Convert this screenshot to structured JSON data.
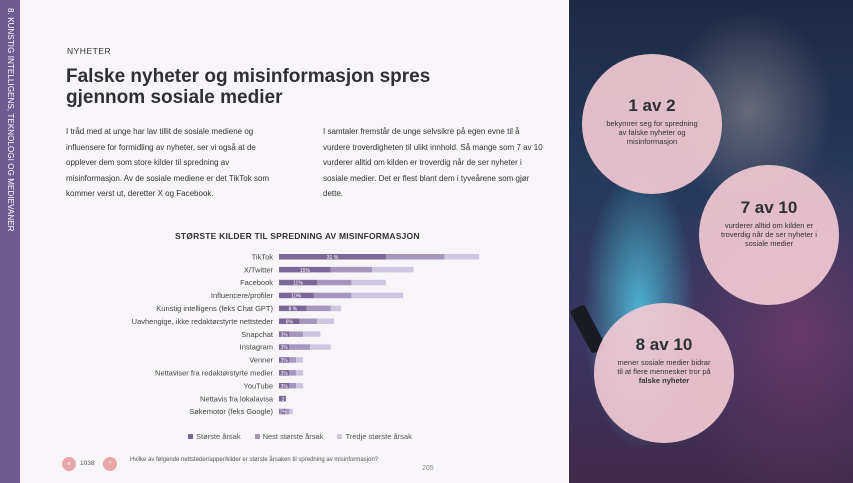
{
  "sidebar": {
    "text": "8. KUNSTIG INTELLIGENS, TEKNOLOGI OG MEDIEVANER"
  },
  "header": {
    "kicker": "NYHETER",
    "title": "Falske nyheter og misinformasjon spres gjennom sosiale medier"
  },
  "body": {
    "col1": "I tråd med at unge har lav tillit de sosiale mediene og influensere for formidling av nyheter, ser vi også at de opplever dem som store kilder til spredning av misinformasjon. Av de sosiale mediene er det TikTok som kommer verst ut, deretter X og Facebook.",
    "col2": "I samtaler fremstår de unge selvsikre på egen evne til å vurdere troverdigheten til ulikt innhold. Så mange som 7 av 10 vurderer alltid om kilden er troverdig når de ser nyheter i sosiale medier. Det er flest blant dem i tyveårene som gjør dette."
  },
  "chart_data": {
    "type": "bar",
    "stacked": true,
    "orientation": "horizontal",
    "title": "STØRSTE KILDER TIL SPREDNING AV MISINFORMASJON",
    "categories": [
      "TikTok",
      "X/Twitter",
      "Facebook",
      "Influencere/profiler",
      "Kunstig intelligens (feks Chat GPT)",
      "Uavhengige, ikke redaktørstyrte nettsteder",
      "Snapchat",
      "Instagram",
      "Venner",
      "Nettaviser fra redaktørstyrte medier",
      "YouTube",
      "Nettavis fra lokalavisa",
      "Søkemotor (feks Google)"
    ],
    "series": [
      {
        "name": "Største årsak",
        "color": "#7b6799",
        "values": [
          31,
          15,
          11,
          10,
          8,
          6,
          3,
          3,
          3,
          3,
          3,
          2,
          2
        ]
      },
      {
        "name": "Nest største årsak",
        "color": "#a596c0",
        "values": [
          17,
          12,
          10,
          11,
          7,
          5,
          4,
          6,
          2,
          2,
          2,
          0,
          1
        ]
      },
      {
        "name": "Tredje største årsak",
        "color": "#cec6de",
        "values": [
          10,
          12,
          10,
          15,
          3,
          5,
          5,
          6,
          2,
          2,
          2,
          0,
          1
        ]
      }
    ],
    "data_labels": [
      "31 %",
      "15%",
      "11%",
      "10%",
      "8 %",
      "6%",
      "3%",
      "3%",
      "3%",
      "3%",
      "3%",
      "2",
      "2%"
    ],
    "legend": "bottom"
  },
  "footer": {
    "n_badge": "n",
    "n_label": "1038",
    "q_badge": "?",
    "question": "Hvilke av følgende nettsteder/apper/kilder er største årsaken til spredning av misinformasjon?",
    "page": "205"
  },
  "stats": [
    {
      "big": "1 av 2",
      "text": "bekymrer seg for spredning av falske nyheter og misinformasjon",
      "bold": ""
    },
    {
      "big": "7 av 10",
      "text": "vurderer alltid om kilden er troverdig når de ser nyheter i sosiale medier",
      "bold": ""
    },
    {
      "big": "8 av 10",
      "text": "mener sosiale medier bidrar til at flere mennesker tror på",
      "bold": "falske nyheter"
    }
  ]
}
